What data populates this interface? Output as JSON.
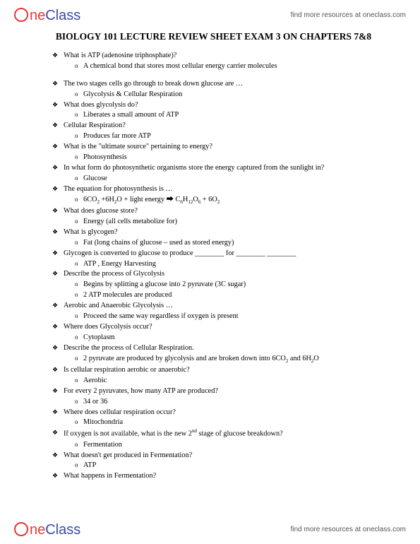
{
  "brand": {
    "first": "ne",
    "second": "Class"
  },
  "resources_text": "find more resources at oneclass.com",
  "title": "BIOLOGY 101 LECTURE REVIEW SHEET EXAM 3 ON CHAPTERS 7&8",
  "items": [
    {
      "type": "q",
      "text": "What is ATP (adenosine triphosphate)?"
    },
    {
      "type": "a",
      "text": "A chemical bond that stores most cellular energy carrier molecules"
    },
    {
      "type": "spacer"
    },
    {
      "type": "q",
      "text": "The two stages cells go through to break down glucose are …"
    },
    {
      "type": "a",
      "text": "Glycolysis   & Cellular Respiration"
    },
    {
      "type": "q",
      "text": "What does glycolysis do?"
    },
    {
      "type": "a",
      "text": "Liberates a small amount of ATP"
    },
    {
      "type": "q",
      "text": "Cellular Respiration?"
    },
    {
      "type": "a",
      "text": "Produces far more ATP"
    },
    {
      "type": "q",
      "text": "What is the \"ultimate source\" pertaining to energy?"
    },
    {
      "type": "a",
      "text": "Photosynthesis"
    },
    {
      "type": "q",
      "text": "In what form do photosynthetic organisms store the energy captured from the sunlight in?"
    },
    {
      "type": "a",
      "text": "Glucose"
    },
    {
      "type": "q",
      "text": "The equation for photosynthesis is …"
    },
    {
      "type": "a",
      "html": "6CO<sub>2</sub> +6H<sub>2</sub>O + light energy ⮕ C<sub>6</sub>H<sub>12</sub>O<sub>6</sub> + 6O<sub>2</sub>"
    },
    {
      "type": "q",
      "text": "What does glucose store?"
    },
    {
      "type": "a",
      "text": "Energy (all cells metabolize for)"
    },
    {
      "type": "q",
      "text": "What is glycogen?"
    },
    {
      "type": "a",
      "text": "Fat (long chains of glucose – used as stored energy)"
    },
    {
      "type": "q",
      "text": "Glycogen is converted to glucose to produce ________ for ________ ________"
    },
    {
      "type": "a",
      "text": "ATP , Energy Harvesting"
    },
    {
      "type": "q",
      "text": "Describe the process of Glycolysis"
    },
    {
      "type": "a",
      "text": "Begins by splitting a glucose into 2 pyruvate (3C sugar)"
    },
    {
      "type": "a",
      "text": "2 ATP molecules are produced"
    },
    {
      "type": "q",
      "text": "Aerobic and Anaerobic Glycolysis …"
    },
    {
      "type": "a",
      "text": "Proceed the same way regardless if oxygen is present"
    },
    {
      "type": "q",
      "text": "Where does Glycolysis occur?"
    },
    {
      "type": "a",
      "text": "Cytoplasm"
    },
    {
      "type": "q",
      "text": "Describe the process of Cellular Respiration."
    },
    {
      "type": "a",
      "html": "2 pyruvate are produced by glycolysis and are broken down into 6CO<sub>2</sub> and 6H<sub>2</sub>O"
    },
    {
      "type": "q",
      "text": "Is cellular respiration aerobic or anaerobic?"
    },
    {
      "type": "a",
      "text": "Aerobic"
    },
    {
      "type": "q",
      "text": "For every 2 pyruvates, how many ATP are produced?"
    },
    {
      "type": "a",
      "text": "34 or 36"
    },
    {
      "type": "q",
      "text": "Where does cellular respiration occur?"
    },
    {
      "type": "a",
      "text": "Mitochondria"
    },
    {
      "type": "q",
      "html": "If oxygen is not available, what is the new 2<sup>nd</sup> stage of glucose breakdown?"
    },
    {
      "type": "a",
      "text": "Fermentation"
    },
    {
      "type": "q",
      "text": "What doesn't get produced in Fermentation?"
    },
    {
      "type": "a",
      "text": "ATP"
    },
    {
      "type": "q",
      "text": "What happens in Fermentation?"
    }
  ]
}
